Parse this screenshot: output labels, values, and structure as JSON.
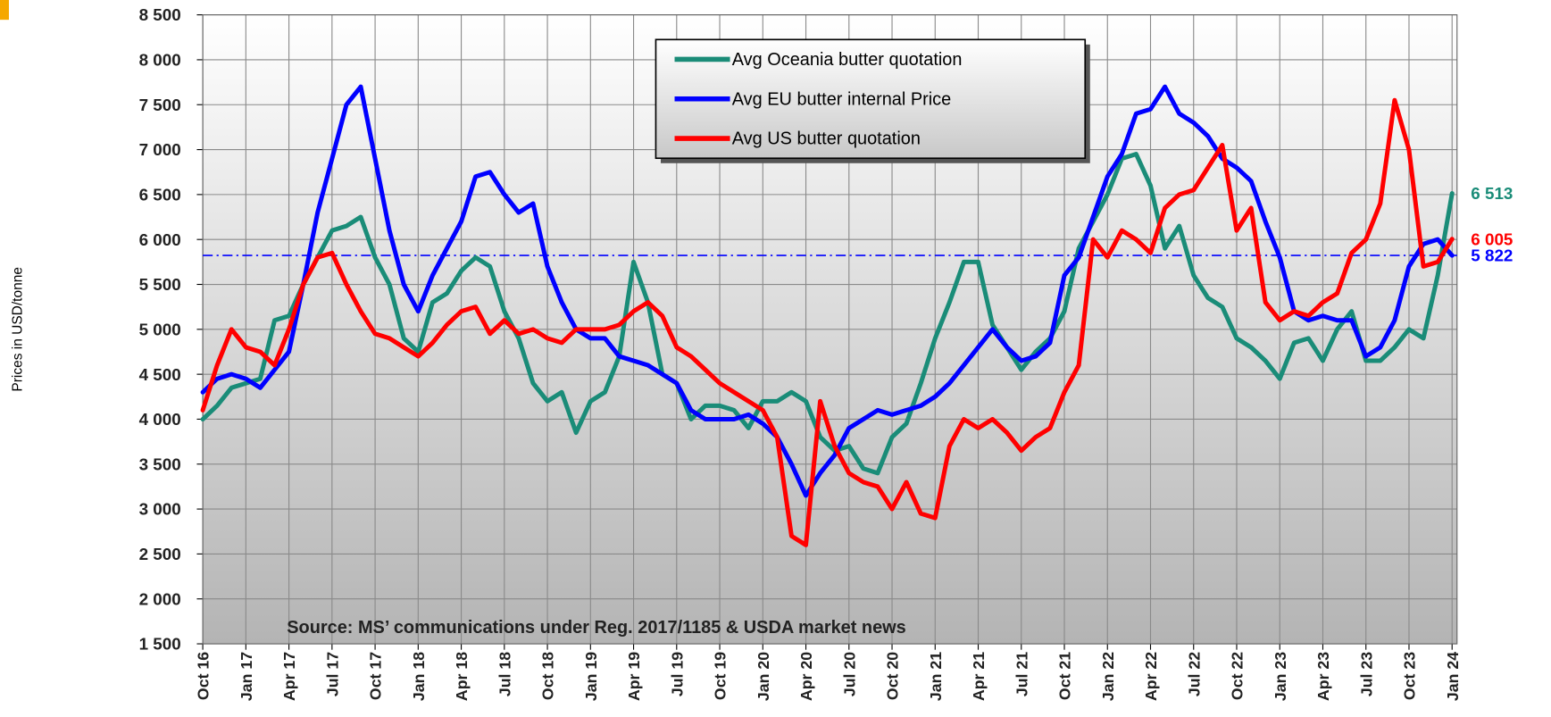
{
  "chart_data": {
    "type": "line",
    "ylabel": "Prices in USD/tonne",
    "annotation": "Source: MS’ communications under Reg. 2017/1185  & USDA market news",
    "categories": [
      "Oct 16",
      null,
      null,
      "Jan 17",
      null,
      null,
      "Apr 17",
      null,
      null,
      "Jul 17",
      null,
      null,
      "Oct 17",
      null,
      null,
      "Jan 18",
      null,
      null,
      "Apr 18",
      null,
      null,
      "Jul 18",
      null,
      null,
      "Oct 18",
      null,
      null,
      "Jan 19",
      null,
      null,
      "Apr 19",
      null,
      null,
      "Jul 19",
      null,
      null,
      "Oct 19",
      null,
      null,
      "Jan 20",
      null,
      null,
      "Apr 20",
      null,
      null,
      "Jul 20",
      null,
      null,
      "Oct 20",
      null,
      null,
      "Jan 21",
      null,
      null,
      "Apr 21",
      null,
      null,
      "Jul 21",
      null,
      null,
      "Oct 21",
      null,
      null,
      "Jan 22",
      null,
      null,
      "Apr 22",
      null,
      null,
      "Jul 22",
      null,
      null,
      "Oct 22",
      null,
      null,
      "Jan 23",
      null,
      null,
      "Apr 23",
      null,
      null,
      "Jul 23",
      null,
      null,
      "Oct 23",
      null,
      null,
      "Jan 24"
    ],
    "series": [
      {
        "name": "Avg Oceania butter quotation",
        "color": "#1a8c78",
        "values": [
          4000,
          4150,
          4350,
          4400,
          4450,
          5100,
          5150,
          5500,
          5800,
          6100,
          6150,
          6250,
          5800,
          5500,
          4900,
          4750,
          5300,
          5400,
          5650,
          5800,
          5700,
          5200,
          4900,
          4400,
          4200,
          4300,
          3850,
          4200,
          4300,
          4700,
          5750,
          5300,
          4500,
          4400,
          4000,
          4150,
          4150,
          4100,
          3900,
          4200,
          4200,
          4300,
          4200,
          3800,
          3650,
          3700,
          3450,
          3400,
          3800,
          3950,
          4400,
          4900,
          5300,
          5750,
          5750,
          5050,
          4800,
          4550,
          4750,
          4900,
          5200,
          5900,
          6200,
          6500,
          6900,
          6950,
          6600,
          5900,
          6150,
          5600,
          5350,
          5250,
          4900,
          4800,
          4650,
          4450,
          4850,
          4900,
          4650,
          5000,
          5200,
          4650,
          4650,
          4800,
          5000,
          4900,
          5600,
          6513
        ],
        "value_labels": [
          null,
          null,
          null,
          null,
          null,
          null,
          null,
          null,
          null,
          null,
          null,
          null,
          null,
          null,
          null,
          null,
          null,
          null,
          null,
          null,
          null,
          null,
          null,
          null,
          null,
          null,
          null,
          null,
          null,
          null,
          null,
          null,
          null,
          null,
          null,
          null,
          null,
          null,
          null,
          null,
          null,
          null,
          null,
          null,
          null,
          null,
          null,
          null,
          null,
          null,
          null,
          null,
          null,
          null,
          null,
          null,
          null,
          null,
          null,
          null,
          null,
          null,
          null,
          null,
          null,
          null,
          null,
          null,
          null,
          null,
          null,
          null,
          null,
          null,
          null,
          null,
          null,
          null,
          null,
          null,
          null,
          null,
          null,
          null,
          null,
          null,
          null,
          "6 513"
        ]
      },
      {
        "name": "Avg EU butter internal Price",
        "color": "#0000ff",
        "values": [
          4300,
          4450,
          4500,
          4450,
          4350,
          4550,
          4750,
          5500,
          6300,
          6900,
          7500,
          7700,
          6900,
          6100,
          5500,
          5200,
          5600,
          5900,
          6200,
          6700,
          6750,
          6500,
          6300,
          6400,
          5700,
          5300,
          5000,
          4900,
          4900,
          4700,
          4650,
          4600,
          4500,
          4400,
          4100,
          4000,
          4000,
          4000,
          4050,
          3950,
          3800,
          3500,
          3150,
          3400,
          3600,
          3900,
          4000,
          4100,
          4050,
          4100,
          4150,
          4250,
          4400,
          4600,
          4800,
          5000,
          4800,
          4650,
          4700,
          4850,
          5600,
          5800,
          6250,
          6700,
          6950,
          7400,
          7450,
          7700,
          7400,
          7300,
          7150,
          6900,
          6800,
          6650,
          6200,
          5800,
          5200,
          5100,
          5150,
          5100,
          5100,
          4700,
          4800,
          5100,
          5700,
          5950,
          6000,
          5822
        ],
        "value_labels": [
          null,
          null,
          null,
          null,
          null,
          null,
          null,
          null,
          null,
          null,
          null,
          null,
          null,
          null,
          null,
          null,
          null,
          null,
          null,
          null,
          null,
          null,
          null,
          null,
          null,
          null,
          null,
          null,
          null,
          null,
          null,
          null,
          null,
          null,
          null,
          null,
          null,
          null,
          null,
          null,
          null,
          null,
          null,
          null,
          null,
          null,
          null,
          null,
          null,
          null,
          null,
          null,
          null,
          null,
          null,
          null,
          null,
          null,
          null,
          null,
          null,
          null,
          null,
          null,
          null,
          null,
          null,
          null,
          null,
          null,
          null,
          null,
          null,
          null,
          null,
          null,
          null,
          null,
          null,
          null,
          null,
          null,
          null,
          null,
          null,
          null,
          null,
          "5 822"
        ]
      },
      {
        "name": "Avg US butter quotation",
        "color": "#ff0000",
        "values": [
          4100,
          4600,
          5000,
          4800,
          4750,
          4600,
          5000,
          5500,
          5800,
          5850,
          5500,
          5200,
          4950,
          4900,
          4800,
          4700,
          4850,
          5050,
          5200,
          5250,
          4950,
          5100,
          4950,
          5000,
          4900,
          4850,
          5000,
          5000,
          5000,
          5050,
          5200,
          5300,
          5150,
          4800,
          4700,
          4550,
          4400,
          4300,
          4200,
          4100,
          3800,
          2700,
          2600,
          4200,
          3700,
          3400,
          3300,
          3250,
          3000,
          3300,
          2950,
          2900,
          3700,
          4000,
          3900,
          4000,
          3850,
          3650,
          3800,
          3900,
          4300,
          4600,
          6000,
          5800,
          6100,
          6000,
          5850,
          6350,
          6500,
          6550,
          6800,
          7050,
          6100,
          6350,
          5300,
          5100,
          5200,
          5150,
          5300,
          5400,
          5850,
          6000,
          6400,
          7550,
          7000,
          5700,
          5750,
          6005
        ],
        "value_labels": [
          null,
          null,
          null,
          null,
          null,
          null,
          null,
          null,
          null,
          null,
          null,
          null,
          null,
          null,
          null,
          null,
          null,
          null,
          null,
          null,
          null,
          null,
          null,
          null,
          null,
          null,
          null,
          null,
          null,
          null,
          null,
          null,
          null,
          null,
          null,
          null,
          null,
          null,
          null,
          null,
          null,
          null,
          null,
          null,
          null,
          null,
          null,
          null,
          null,
          null,
          null,
          null,
          null,
          null,
          null,
          null,
          null,
          null,
          null,
          null,
          null,
          null,
          null,
          null,
          null,
          null,
          null,
          null,
          null,
          null,
          null,
          null,
          null,
          null,
          null,
          null,
          null,
          null,
          null,
          null,
          null,
          null,
          null,
          null,
          null,
          null,
          null,
          "6 005"
        ]
      }
    ],
    "reference_line": {
      "value": 5822,
      "color": "#0000ff"
    },
    "ylim": [
      1500,
      8500
    ],
    "yticks": [
      {
        "value": 1500,
        "label": "1 500"
      },
      {
        "value": 2000,
        "label": "2 000"
      },
      {
        "value": 2500,
        "label": "2 500"
      },
      {
        "value": 3000,
        "label": "3 000"
      },
      {
        "value": 3500,
        "label": "3 500"
      },
      {
        "value": 4000,
        "label": "4 000"
      },
      {
        "value": 4500,
        "label": "4 500"
      },
      {
        "value": 5000,
        "label": "5 000"
      },
      {
        "value": 5500,
        "label": "5 500"
      },
      {
        "value": 6000,
        "label": "6 000"
      },
      {
        "value": 6500,
        "label": "6 500"
      },
      {
        "value": 7000,
        "label": "7 000"
      },
      {
        "value": 7500,
        "label": "7 500"
      },
      {
        "value": 8000,
        "label": "8 000"
      },
      {
        "value": 8500,
        "label": "8 500"
      }
    ],
    "grid": true,
    "legend": "top-center"
  }
}
